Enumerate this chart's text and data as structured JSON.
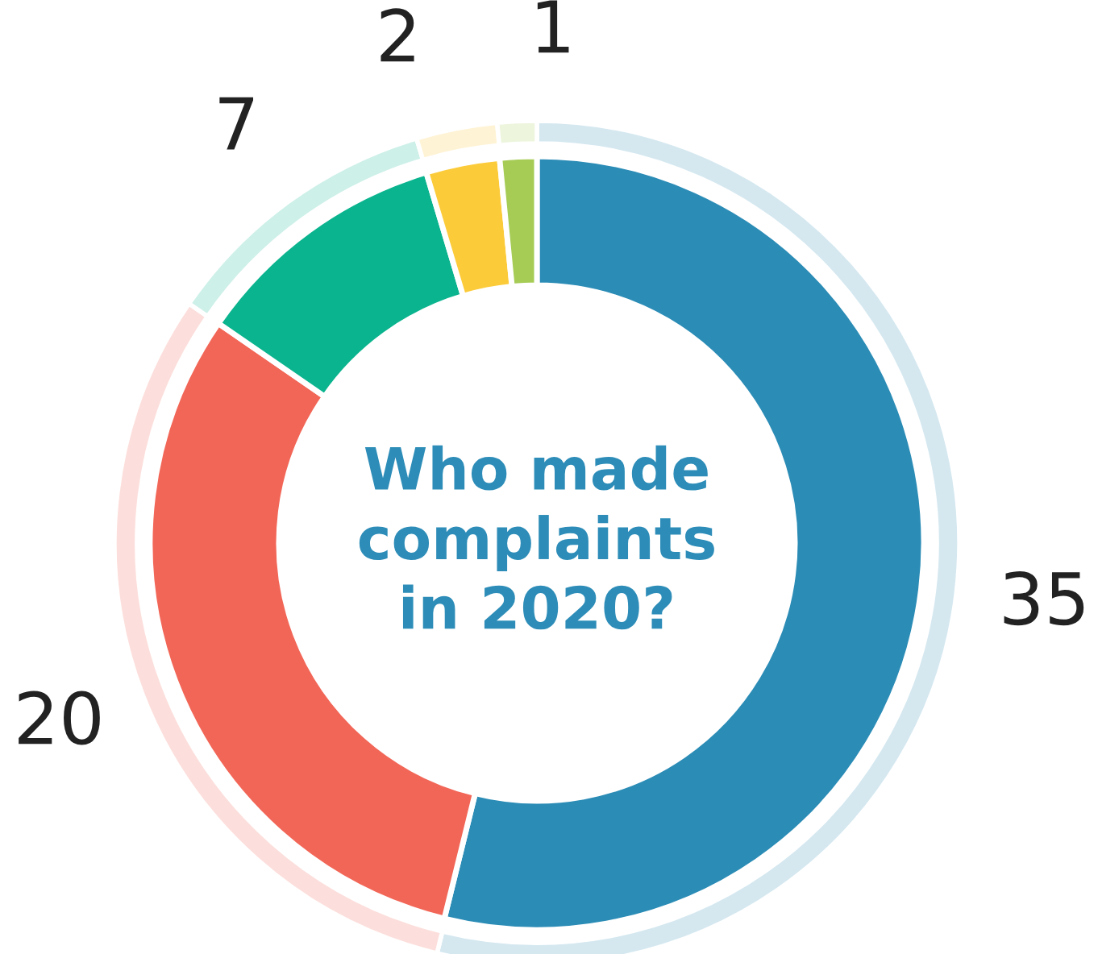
{
  "chart_data": {
    "type": "donut",
    "title": "Who made\ncomplaints\nin 2020?",
    "categories": [
      null,
      null,
      null,
      null,
      null
    ],
    "series": [
      {
        "values": [
          35,
          20,
          7,
          2,
          1
        ],
        "colors": [
          "#2b8cb6",
          "#f26657",
          "#0ab48e",
          "#fccb3a",
          "#a6cc56"
        ],
        "value_labels": [
          "35",
          "20",
          "7",
          "2",
          "1"
        ]
      },
      {
        "values": [
          53.8,
          30.8,
          10.8,
          3.1,
          1.5
        ],
        "colors": [
          "#d5e8f0",
          "#fcdfdc",
          "#cdf0e8",
          "#fff3d5",
          "#edf5dd"
        ]
      }
    ]
  }
}
